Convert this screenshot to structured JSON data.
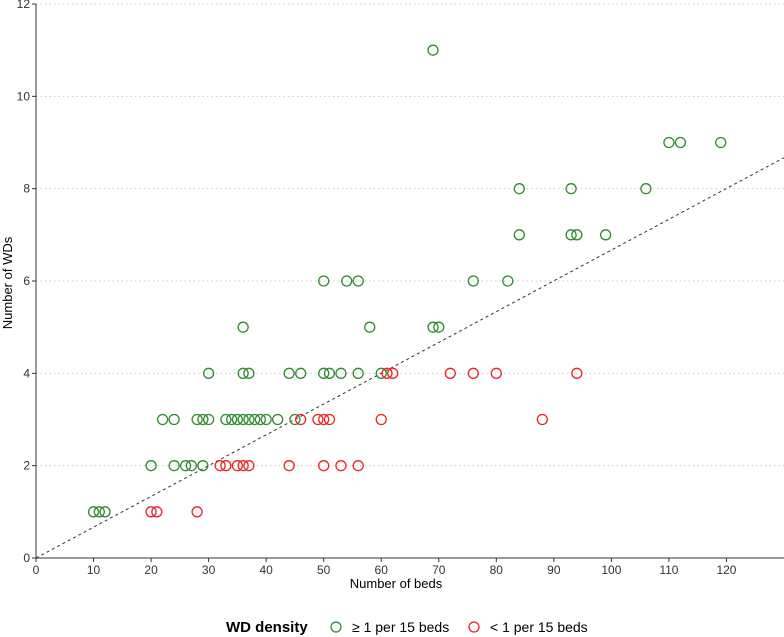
{
  "chart_data": {
    "type": "scatter",
    "xlabel": "Number of beds",
    "ylabel": "Number of WDs",
    "xlim": [
      0,
      130
    ],
    "ylim": [
      0,
      12
    ],
    "xticks": [
      0,
      10,
      20,
      30,
      40,
      50,
      60,
      70,
      80,
      90,
      100,
      110,
      120
    ],
    "yticks": [
      0,
      2,
      4,
      6,
      8,
      10,
      12
    ],
    "grid": "horizontal dotted",
    "reference_line": {
      "style": "dashed",
      "slope": 0.0667,
      "intercept": 0
    },
    "legend": {
      "title": "WD density",
      "position": "bottom",
      "entries": [
        "≥ 1 per 15 beds",
        "< 1 per 15 beds"
      ]
    },
    "series": [
      {
        "name": "≥ 1 per 15 beds",
        "color": "#2e8b2e",
        "points": [
          [
            10,
            1
          ],
          [
            11,
            1
          ],
          [
            12,
            1
          ],
          [
            20,
            2
          ],
          [
            24,
            2
          ],
          [
            26,
            2
          ],
          [
            27,
            2
          ],
          [
            29,
            2
          ],
          [
            22,
            3
          ],
          [
            24,
            3
          ],
          [
            28,
            3
          ],
          [
            29,
            3
          ],
          [
            30,
            3
          ],
          [
            33,
            3
          ],
          [
            34,
            3
          ],
          [
            35,
            3
          ],
          [
            36,
            3
          ],
          [
            37,
            3
          ],
          [
            38,
            3
          ],
          [
            39,
            3
          ],
          [
            40,
            3
          ],
          [
            42,
            3
          ],
          [
            45,
            3
          ],
          [
            30,
            4
          ],
          [
            36,
            4
          ],
          [
            37,
            4
          ],
          [
            44,
            4
          ],
          [
            46,
            4
          ],
          [
            50,
            4
          ],
          [
            51,
            4
          ],
          [
            53,
            4
          ],
          [
            56,
            4
          ],
          [
            60,
            4
          ],
          [
            36,
            5
          ],
          [
            58,
            5
          ],
          [
            69,
            5
          ],
          [
            70,
            5
          ],
          [
            50,
            6
          ],
          [
            54,
            6
          ],
          [
            56,
            6
          ],
          [
            76,
            6
          ],
          [
            82,
            6
          ],
          [
            84,
            7
          ],
          [
            93,
            7
          ],
          [
            94,
            7
          ],
          [
            99,
            7
          ],
          [
            84,
            8
          ],
          [
            93,
            8
          ],
          [
            106,
            8
          ],
          [
            110,
            9
          ],
          [
            112,
            9
          ],
          [
            119,
            9
          ],
          [
            69,
            11
          ]
        ]
      },
      {
        "name": "< 1 per 15 beds",
        "color": "#ee2222",
        "points": [
          [
            20,
            1
          ],
          [
            21,
            1
          ],
          [
            28,
            1
          ],
          [
            32,
            2
          ],
          [
            33,
            2
          ],
          [
            35,
            2
          ],
          [
            36,
            2
          ],
          [
            37,
            2
          ],
          [
            44,
            2
          ],
          [
            50,
            2
          ],
          [
            53,
            2
          ],
          [
            56,
            2
          ],
          [
            46,
            3
          ],
          [
            49,
            3
          ],
          [
            50,
            3
          ],
          [
            51,
            3
          ],
          [
            60,
            3
          ],
          [
            88,
            3
          ],
          [
            61,
            4
          ],
          [
            62,
            4
          ],
          [
            72,
            4
          ],
          [
            76,
            4
          ],
          [
            80,
            4
          ],
          [
            94,
            4
          ]
        ]
      }
    ]
  }
}
